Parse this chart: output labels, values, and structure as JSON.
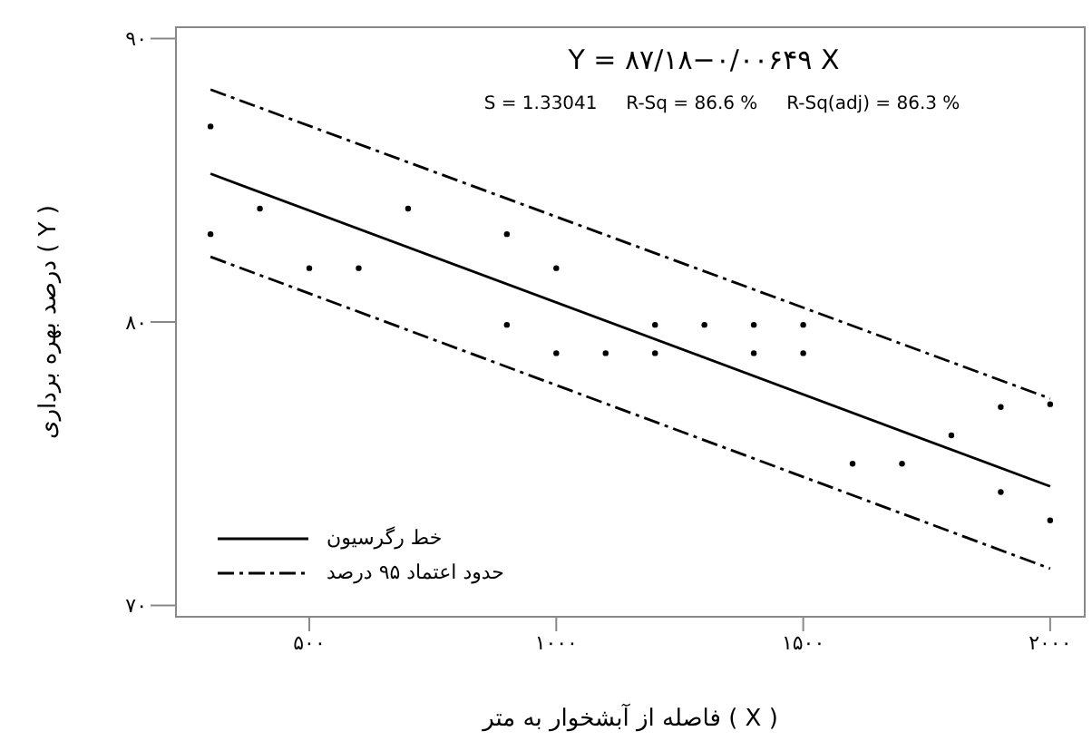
{
  "chart_data": {
    "type": "scatter",
    "title": "Y = ۸۷/۱۸−۰/۰۰۶۴۹ X",
    "xlabel": "فاصله از آبشخوار به متر ( X )",
    "ylabel": "درصد بهره برداری ( Y )",
    "annotations": [
      "S = 1.33041     R-Sq = 86.6 %     R-Sq(adj) = 86.3 %"
    ],
    "xlim": [
      230,
      2070
    ],
    "ylim": [
      69.6,
      90.4
    ],
    "xticks": [
      {
        "value": 500,
        "label": "۵۰۰"
      },
      {
        "value": 1000,
        "label": "۱۰۰۰"
      },
      {
        "value": 1500,
        "label": "۱۵۰۰"
      },
      {
        "value": 2000,
        "label": "۲۰۰۰"
      }
    ],
    "yticks": [
      {
        "value": 70,
        "label": "۷۰"
      },
      {
        "value": 80,
        "label": "۸۰"
      },
      {
        "value": 90,
        "label": "۹۰"
      }
    ],
    "grid": false,
    "legend": "bottom left",
    "series": [
      {
        "color": "#000000",
        "marker": "circle",
        "x": [
          300,
          400,
          700,
          300,
          900,
          500,
          600,
          1000,
          900,
          1200,
          1300,
          1400,
          1500,
          1000,
          1100,
          1200,
          1400,
          1500,
          2000,
          1900,
          1800,
          1600,
          1700,
          1900,
          2000
        ],
        "values": [
          86.9,
          84.0,
          84.0,
          83.1,
          83.1,
          81.9,
          81.9,
          81.9,
          79.9,
          79.9,
          79.9,
          79.9,
          79.9,
          78.9,
          78.9,
          78.9,
          78.9,
          78.9,
          77.1,
          77.0,
          76.0,
          75.0,
          75.0,
          74.0,
          73.0
        ]
      },
      {
        "type": "line",
        "name": "خط رگرسیون",
        "color": "#000000",
        "line_style": "solid",
        "marker": "none",
        "x": [
          300,
          2000
        ],
        "values": [
          85.23,
          74.2
        ]
      },
      {
        "type": "line",
        "name": "حدود اعتماد ۹۵ درصد",
        "color": "#000000",
        "line_style": "dashed",
        "marker": "none",
        "x": [
          300,
          2000
        ],
        "values": [
          88.2,
          77.3
        ]
      },
      {
        "type": "line",
        "color": "#000000",
        "line_style": "dashed",
        "marker": "none",
        "x": [
          300,
          2000
        ],
        "values": [
          82.3,
          71.3
        ]
      }
    ]
  }
}
